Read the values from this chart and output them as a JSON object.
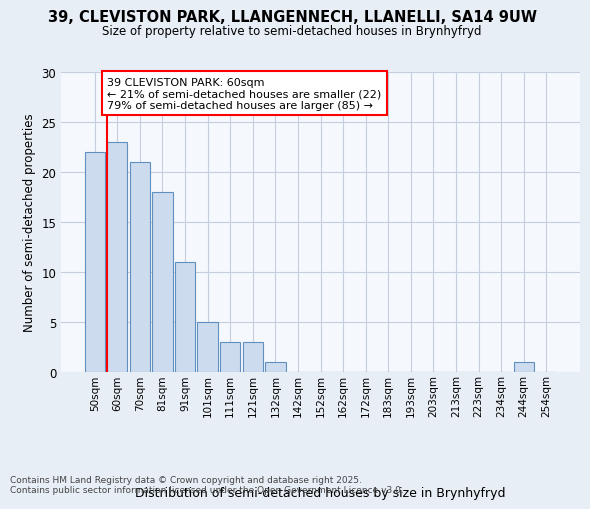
{
  "title1": "39, CLEVISTON PARK, LLANGENNECH, LLANELLI, SA14 9UW",
  "title2": "Size of property relative to semi-detached houses in Brynhyfryd",
  "xlabel": "Distribution of semi-detached houses by size in Brynhyfryd",
  "ylabel": "Number of semi-detached properties",
  "categories": [
    "50sqm",
    "60sqm",
    "70sqm",
    "81sqm",
    "91sqm",
    "101sqm",
    "111sqm",
    "121sqm",
    "132sqm",
    "142sqm",
    "152sqm",
    "162sqm",
    "172sqm",
    "183sqm",
    "193sqm",
    "203sqm",
    "213sqm",
    "223sqm",
    "234sqm",
    "244sqm",
    "254sqm"
  ],
  "values": [
    22,
    23,
    21,
    18,
    11,
    5,
    3,
    3,
    1,
    0,
    0,
    0,
    0,
    0,
    0,
    0,
    0,
    0,
    0,
    1,
    0
  ],
  "bar_color": "#ccdcee",
  "bar_edge_color": "#6090c0",
  "red_line_index": 1,
  "annotation_title": "39 CLEVISTON PARK: 60sqm",
  "annotation_line2": "← 21% of semi-detached houses are smaller (22)",
  "annotation_line3": "79% of semi-detached houses are larger (85) →",
  "ylim": [
    0,
    30
  ],
  "yticks": [
    0,
    5,
    10,
    15,
    20,
    25,
    30
  ],
  "footer1": "Contains HM Land Registry data © Crown copyright and database right 2025.",
  "footer2": "Contains public sector information licensed under the Open Government Licence v3.0.",
  "background_color": "#e8eef6",
  "plot_background": "#f5f8fd",
  "grid_color": "#c4cedc"
}
